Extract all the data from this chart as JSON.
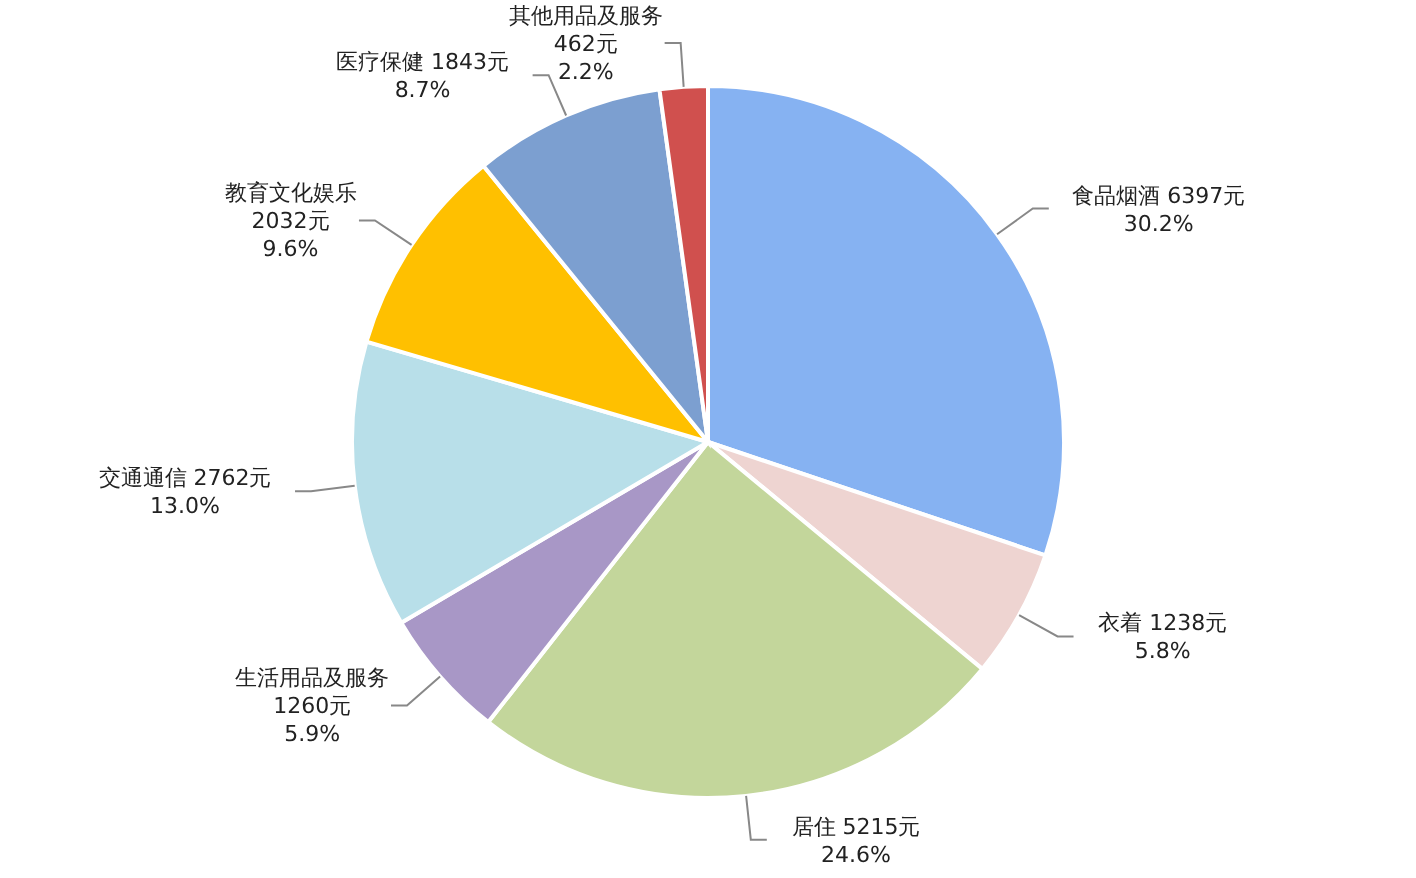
{
  "chart_data": {
    "type": "pie",
    "categories": [
      "食品烟酒",
      "衣着",
      "居住",
      "生活用品及服务",
      "交通通信",
      "教育文化娱乐",
      "医疗保健",
      "其他用品及服务"
    ],
    "values": [
      6397,
      1238,
      5215,
      1260,
      2762,
      2032,
      1843,
      462
    ],
    "value_labels": [
      "6397元\n30.2%",
      "1238元\n5.8%",
      "5215元\n24.6%",
      "1260元\n5.9%",
      "2762元\n13.0%",
      "2032元\n9.6%",
      "1843元\n8.7%",
      "462元\n2.2%"
    ],
    "colors": [
      "#86b2f2",
      "#eed4d1",
      "#c3d69b",
      "#a897c6",
      "#b8dfe9",
      "#ffc000",
      "#7c9fd0",
      "#d0504e"
    ],
    "legend": false
  }
}
